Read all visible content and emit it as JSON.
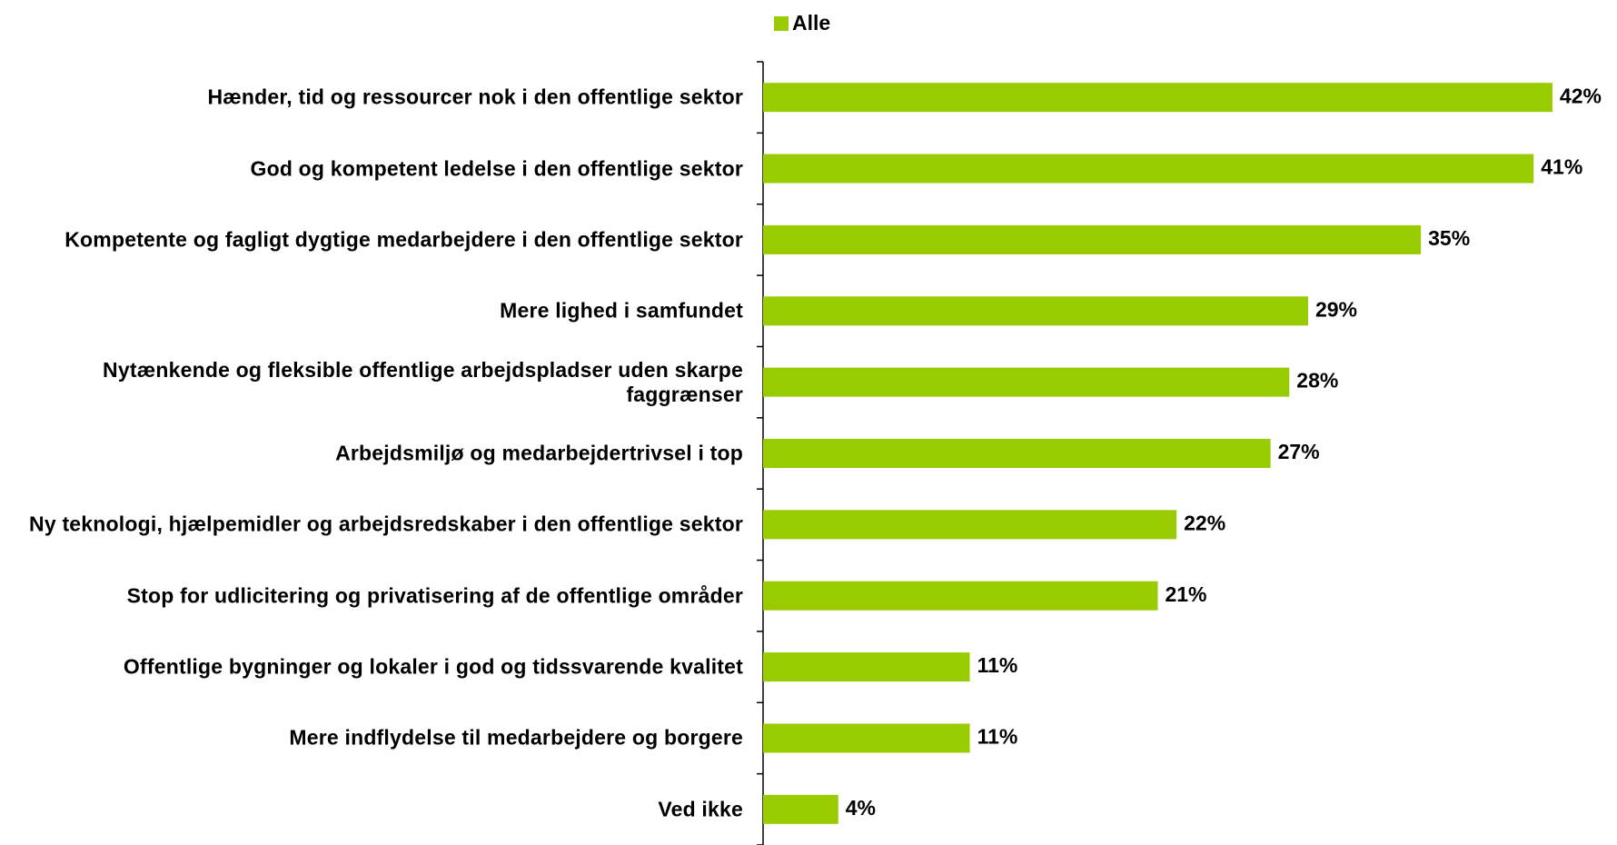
{
  "chart_data": {
    "type": "bar",
    "orientation": "horizontal",
    "categories": [
      "Hænder, tid og ressourcer nok i den offentlige sektor",
      "God og kompetent ledelse i den offentlige sektor",
      "Kompetente og fagligt dygtige medarbejdere i den offentlige sektor",
      "Mere lighed i samfundet",
      "Nytænkende og fleksible offentlige arbejdspladser uden skarpe faggrænser",
      "Arbejdsmiljø og medarbejdertrivsel i top",
      "Ny teknologi, hjælpemidler og arbejdsredskaber i den offentlige sektor",
      "Stop for udlicitering og privatisering af de offentlige områder",
      "Offentlige bygninger og lokaler i god og tidssvarende kvalitet",
      "Mere indflydelse til medarbejdere og borgere",
      "Ved ikke"
    ],
    "series": [
      {
        "name": "Alle",
        "color": "#99cc00",
        "values": [
          42,
          41,
          35,
          29,
          28,
          27,
          22,
          21,
          11,
          11,
          4
        ],
        "value_labels": [
          "42%",
          "41%",
          "35%",
          "29%",
          "28%",
          "27%",
          "22%",
          "21%",
          "11%",
          "11%",
          "4%"
        ]
      }
    ],
    "xlim": [
      0,
      45
    ],
    "legend": "top"
  }
}
